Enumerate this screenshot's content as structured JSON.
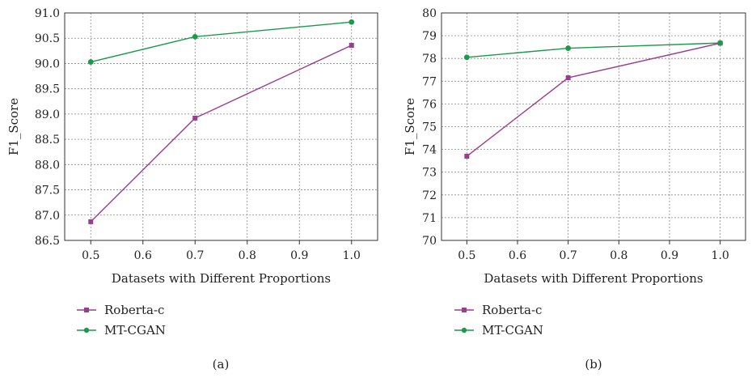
{
  "chart_data": [
    {
      "type": "line",
      "panel_label": "(a)",
      "xlabel": "Datasets with Different Proportions",
      "ylabel": "F1_Score",
      "x": [
        0.5,
        0.7,
        1.0
      ],
      "xticks": [
        "0.5",
        "0.6",
        "0.7",
        "0.8",
        "0.9",
        "1.0"
      ],
      "yticks": [
        "86.5",
        "87.0",
        "87.5",
        "88.0",
        "88.5",
        "89.0",
        "89.5",
        "90.0",
        "90.5",
        "91.0"
      ],
      "xlim": [
        0.45,
        1.05
      ],
      "ylim": [
        86.5,
        91.0
      ],
      "grid": true,
      "legend_position": "bottom-left",
      "series": [
        {
          "name": "Roberta-c",
          "values": [
            86.87,
            88.92,
            90.36
          ],
          "color": "#9b3d8f",
          "marker": "square"
        },
        {
          "name": "MT-CGAN",
          "values": [
            90.03,
            90.53,
            90.82
          ],
          "color": "#1a9a4a",
          "marker": "circle"
        }
      ]
    },
    {
      "type": "line",
      "panel_label": "(b)",
      "xlabel": "Datasets with Different Proportions",
      "ylabel": "F1_Score",
      "x": [
        0.5,
        0.7,
        1.0
      ],
      "xticks": [
        "0.5",
        "0.6",
        "0.7",
        "0.8",
        "0.9",
        "1.0"
      ],
      "yticks": [
        "70",
        "71",
        "72",
        "73",
        "74",
        "75",
        "76",
        "77",
        "78",
        "79",
        "80"
      ],
      "xlim": [
        0.45,
        1.05
      ],
      "ylim": [
        70,
        80
      ],
      "grid": true,
      "legend_position": "bottom-left",
      "series": [
        {
          "name": "Roberta-c",
          "values": [
            73.7,
            77.15,
            78.67
          ],
          "color": "#9b3d8f",
          "marker": "square"
        },
        {
          "name": "MT-CGAN",
          "values": [
            78.05,
            78.45,
            78.68
          ],
          "color": "#1a9a4a",
          "marker": "circle"
        }
      ]
    }
  ]
}
